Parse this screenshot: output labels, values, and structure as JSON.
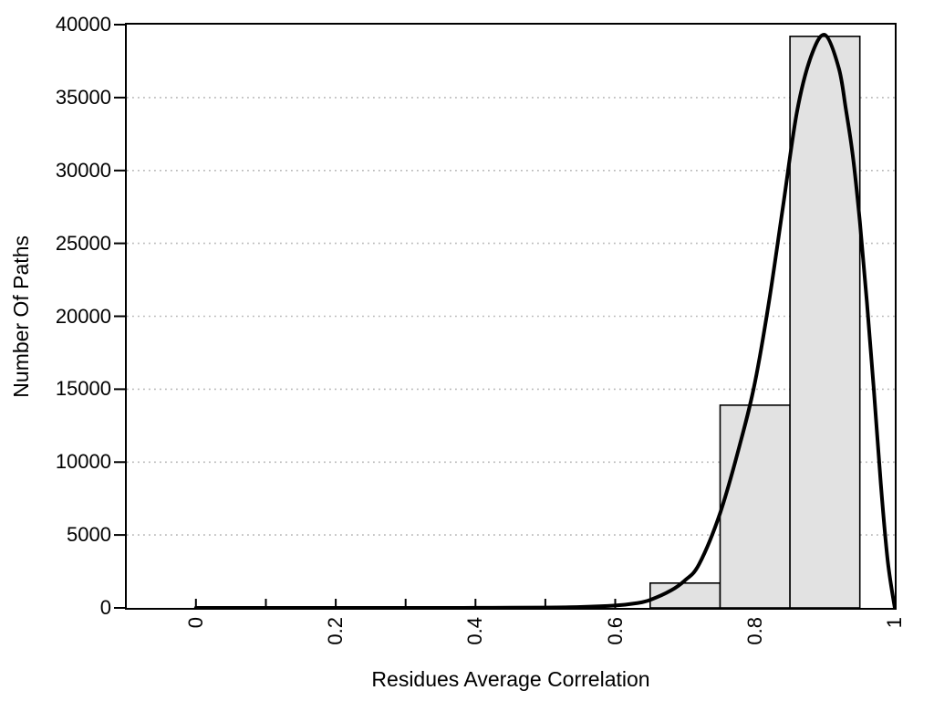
{
  "figure": {
    "background": "#ffffff",
    "axis_color": "#000000",
    "bar_fill": "#e2e2e2",
    "bar_stroke": "#000000",
    "curve_color": "#000000",
    "gridline_color": "#b8b8b8"
  },
  "chart_data": {
    "type": "bar",
    "subtype": "histogram_with_density_curve",
    "title": "",
    "xlabel": "Residues Average Correlation",
    "ylabel": "Number Of Paths",
    "xlim": [
      0,
      1
    ],
    "xlim_display": [
      -0.099,
      1.0
    ],
    "ylim": [
      0,
      40000
    ],
    "grid": "horizontal dotted lines at y major ticks",
    "legend": "none",
    "x_major_ticks": [
      {
        "value": 0,
        "label": "0"
      },
      {
        "value": 0.2,
        "label": "0.2"
      },
      {
        "value": 0.4,
        "label": "0.4"
      },
      {
        "value": 0.6,
        "label": "0.6"
      },
      {
        "value": 0.8,
        "label": "0.8"
      },
      {
        "value": 1,
        "label": "1"
      }
    ],
    "x_minor_ticks": [
      0,
      0.1,
      0.2,
      0.3,
      0.4,
      0.5,
      0.6,
      0.7,
      0.8,
      0.9,
      1.0
    ],
    "y_ticks": [
      {
        "value": 0,
        "label": "0"
      },
      {
        "value": 5000,
        "label": "5000"
      },
      {
        "value": 10000,
        "label": "10000"
      },
      {
        "value": 15000,
        "label": "15000"
      },
      {
        "value": 20000,
        "label": "20000"
      },
      {
        "value": 25000,
        "label": "25000"
      },
      {
        "value": 30000,
        "label": "30000"
      },
      {
        "value": 35000,
        "label": "35000"
      },
      {
        "value": 40000,
        "label": "40000"
      }
    ],
    "grid_y": [
      5000,
      10000,
      15000,
      20000,
      25000,
      30000,
      35000
    ],
    "bars": [
      {
        "from": 0.65,
        "to": 0.75,
        "count": 1700
      },
      {
        "from": 0.75,
        "to": 0.85,
        "count": 13900
      },
      {
        "from": 0.85,
        "to": 0.95,
        "count": 39200
      }
    ],
    "curve": {
      "name": "density-fit",
      "points": [
        [
          0.0,
          0
        ],
        [
          0.05,
          0
        ],
        [
          0.1,
          0
        ],
        [
          0.15,
          0
        ],
        [
          0.2,
          0
        ],
        [
          0.25,
          0
        ],
        [
          0.3,
          0
        ],
        [
          0.35,
          0
        ],
        [
          0.4,
          5
        ],
        [
          0.45,
          12
        ],
        [
          0.5,
          25
        ],
        [
          0.55,
          60
        ],
        [
          0.6,
          160
        ],
        [
          0.63,
          320
        ],
        [
          0.65,
          550
        ],
        [
          0.68,
          1200
        ],
        [
          0.7,
          1900
        ],
        [
          0.72,
          3000
        ],
        [
          0.75,
          6500
        ],
        [
          0.78,
          11500
        ],
        [
          0.8,
          15500
        ],
        [
          0.82,
          21000
        ],
        [
          0.84,
          27500
        ],
        [
          0.86,
          34000
        ],
        [
          0.88,
          37800
        ],
        [
          0.9,
          39300
        ],
        [
          0.92,
          37000
        ],
        [
          0.93,
          34200
        ],
        [
          0.94,
          31000
        ],
        [
          0.95,
          26500
        ],
        [
          0.96,
          21000
        ],
        [
          0.97,
          15000
        ],
        [
          0.98,
          8500
        ],
        [
          0.99,
          3200
        ],
        [
          1.0,
          0
        ]
      ]
    }
  }
}
